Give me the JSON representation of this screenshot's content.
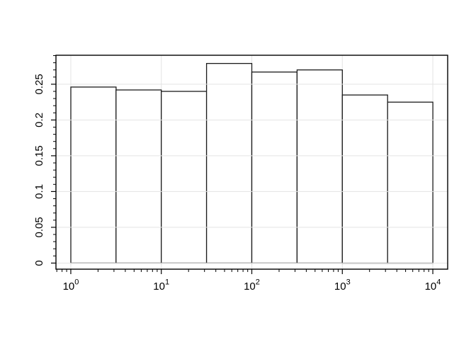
{
  "figure": {
    "background": "#ffffff",
    "title": ""
  },
  "chart_data": {
    "type": "bar",
    "subtype": "histogram-density",
    "title": "",
    "xlabel": "",
    "ylabel": "",
    "x_scale": "log10",
    "bin_edges": [
      1,
      3.162,
      10,
      31.62,
      100,
      316.2,
      1000,
      3162,
      10000
    ],
    "bin_edges_log10": [
      0,
      0.5,
      1,
      1.5,
      2,
      2.5,
      3,
      3.5,
      4
    ],
    "values": [
      0.246,
      0.242,
      0.24,
      0.279,
      0.267,
      0.27,
      0.235,
      0.225
    ],
    "xlim_log10": [
      -0.164,
      4.164
    ],
    "ylim": [
      -0.0085,
      0.2905
    ],
    "x_major_ticks": [
      {
        "log10": 0,
        "base": "10",
        "exp": "0"
      },
      {
        "log10": 1,
        "base": "10",
        "exp": "1"
      },
      {
        "log10": 2,
        "base": "10",
        "exp": "2"
      },
      {
        "log10": 3,
        "base": "10",
        "exp": "3"
      },
      {
        "log10": 4,
        "base": "10",
        "exp": "4"
      }
    ],
    "x_minor_ticks": {
      "decades": [
        -1,
        0,
        1,
        2,
        3
      ],
      "mantissas": [
        2,
        3,
        4,
        5,
        6,
        7,
        8,
        9
      ]
    },
    "y_major_ticks": [
      {
        "value": 0,
        "label": "0"
      },
      {
        "value": 0.05,
        "label": "0.05"
      },
      {
        "value": 0.1,
        "label": "0.1"
      },
      {
        "value": 0.15,
        "label": "0.15"
      },
      {
        "value": 0.2,
        "label": "0.2"
      },
      {
        "value": 0.25,
        "label": "0.25"
      }
    ],
    "y_minor_step": 0.01,
    "y_minor_max": 0.29,
    "grid": {
      "horizontal": true,
      "vertical": true,
      "color": "#e3e3e3"
    },
    "style": {
      "bar_fill": "#ffffff",
      "bar_stroke": "#1c1c1c",
      "frame_stroke": "#000000",
      "tick_stroke": "#000000",
      "label_color": "#000000"
    }
  }
}
